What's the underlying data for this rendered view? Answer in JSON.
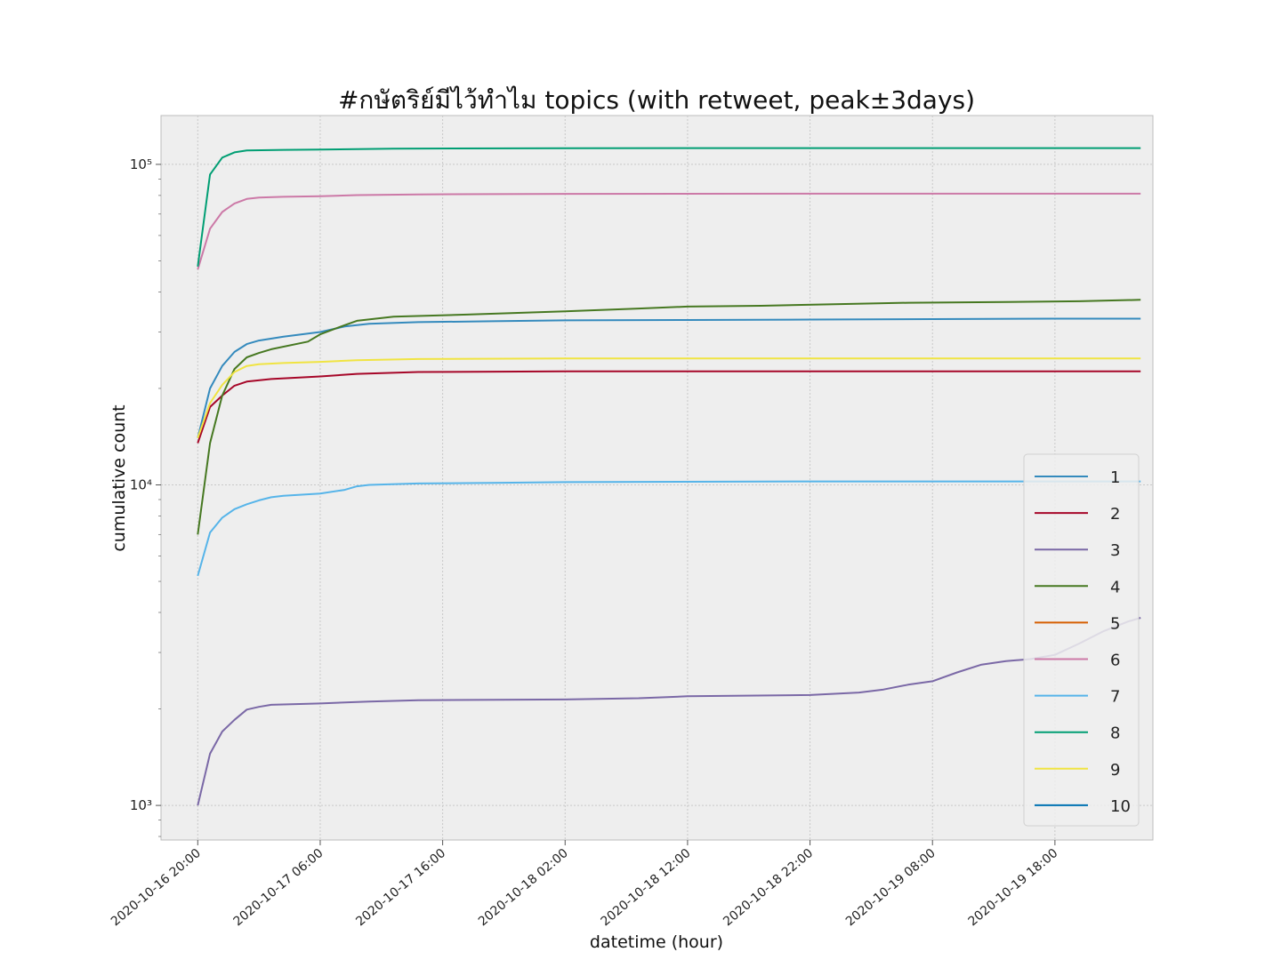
{
  "chart_data": {
    "type": "line",
    "title": "#กษัตริย์มีไว้ทำไม topics (with retweet, peak±3days)",
    "xlabel": "datetime (hour)",
    "ylabel": "cumulative count",
    "yscale": "log",
    "ylim": [
      780,
      142000
    ],
    "xlim": [
      "2020-10-16 17:00",
      "2020-10-20 02:00"
    ],
    "grid": true,
    "legend_position": "lower-right",
    "x_ticks": [
      "2020-10-16 20:00",
      "2020-10-17 06:00",
      "2020-10-17 16:00",
      "2020-10-18 02:00",
      "2020-10-18 12:00",
      "2020-10-18 22:00",
      "2020-10-19 08:00",
      "2020-10-19 18:00"
    ],
    "y_ticks": [
      {
        "value": 1000,
        "label": "10³"
      },
      {
        "value": 10000,
        "label": "10⁴"
      },
      {
        "value": 100000,
        "label": "10⁵"
      }
    ],
    "series": [
      {
        "name": "1",
        "color": "#348abd",
        "points": [
          [
            "2020-10-16 20:00",
            14000
          ],
          [
            "2020-10-16 21:00",
            20000
          ],
          [
            "2020-10-16 22:00",
            23500
          ],
          [
            "2020-10-16 23:00",
            26000
          ],
          [
            "2020-10-17 00:00",
            27500
          ],
          [
            "2020-10-17 01:00",
            28200
          ],
          [
            "2020-10-17 03:00",
            29000
          ],
          [
            "2020-10-17 06:00",
            30000
          ],
          [
            "2020-10-17 08:00",
            31200
          ],
          [
            "2020-10-17 10:00",
            31800
          ],
          [
            "2020-10-17 14:00",
            32200
          ],
          [
            "2020-10-17 20:00",
            32400
          ],
          [
            "2020-10-18 02:00",
            32600
          ],
          [
            "2020-10-18 12:00",
            32700
          ],
          [
            "2020-10-18 22:00",
            32800
          ],
          [
            "2020-10-19 08:00",
            32900
          ],
          [
            "2020-10-19 18:00",
            33000
          ],
          [
            "2020-10-20 01:00",
            33000
          ]
        ]
      },
      {
        "name": "2",
        "color": "#a60628",
        "points": [
          [
            "2020-10-16 20:00",
            13500
          ],
          [
            "2020-10-16 21:00",
            17500
          ],
          [
            "2020-10-16 22:00",
            19000
          ],
          [
            "2020-10-16 23:00",
            20400
          ],
          [
            "2020-10-17 00:00",
            21000
          ],
          [
            "2020-10-17 02:00",
            21400
          ],
          [
            "2020-10-17 06:00",
            21800
          ],
          [
            "2020-10-17 09:00",
            22200
          ],
          [
            "2020-10-17 14:00",
            22500
          ],
          [
            "2020-10-18 02:00",
            22600
          ],
          [
            "2020-10-18 22:00",
            22600
          ],
          [
            "2020-10-20 01:00",
            22600
          ]
        ]
      },
      {
        "name": "3",
        "color": "#7a68a6",
        "points": [
          [
            "2020-10-16 20:00",
            1000
          ],
          [
            "2020-10-16 21:00",
            1450
          ],
          [
            "2020-10-16 22:00",
            1700
          ],
          [
            "2020-10-16 23:00",
            1850
          ],
          [
            "2020-10-17 00:00",
            1990
          ],
          [
            "2020-10-17 01:00",
            2030
          ],
          [
            "2020-10-17 02:00",
            2060
          ],
          [
            "2020-10-17 06:00",
            2080
          ],
          [
            "2020-10-17 10:00",
            2110
          ],
          [
            "2020-10-17 14:00",
            2130
          ],
          [
            "2020-10-18 02:00",
            2140
          ],
          [
            "2020-10-18 08:00",
            2160
          ],
          [
            "2020-10-18 12:00",
            2190
          ],
          [
            "2020-10-18 22:00",
            2210
          ],
          [
            "2020-10-19 02:00",
            2250
          ],
          [
            "2020-10-19 04:00",
            2300
          ],
          [
            "2020-10-19 06:00",
            2380
          ],
          [
            "2020-10-19 08:00",
            2440
          ],
          [
            "2020-10-19 10:00",
            2600
          ],
          [
            "2020-10-19 12:00",
            2750
          ],
          [
            "2020-10-19 14:00",
            2820
          ],
          [
            "2020-10-19 16:00",
            2860
          ],
          [
            "2020-10-19 18:00",
            2950
          ],
          [
            "2020-10-19 20:00",
            3200
          ],
          [
            "2020-10-19 22:00",
            3500
          ],
          [
            "2020-10-20 00:00",
            3750
          ],
          [
            "2020-10-20 01:00",
            3850
          ]
        ]
      },
      {
        "name": "4",
        "color": "#467821",
        "points": [
          [
            "2020-10-16 20:00",
            7000
          ],
          [
            "2020-10-16 21:00",
            13500
          ],
          [
            "2020-10-16 22:00",
            19000
          ],
          [
            "2020-10-16 23:00",
            23000
          ],
          [
            "2020-10-17 00:00",
            25000
          ],
          [
            "2020-10-17 01:00",
            25800
          ],
          [
            "2020-10-17 02:00",
            26500
          ],
          [
            "2020-10-17 05:00",
            28000
          ],
          [
            "2020-10-17 06:00",
            29500
          ],
          [
            "2020-10-17 08:00",
            31500
          ],
          [
            "2020-10-17 09:00",
            32500
          ],
          [
            "2020-10-17 12:00",
            33500
          ],
          [
            "2020-10-17 18:00",
            34000
          ],
          [
            "2020-10-18 02:00",
            34800
          ],
          [
            "2020-10-18 08:00",
            35500
          ],
          [
            "2020-10-18 12:00",
            36000
          ],
          [
            "2020-10-18 18:00",
            36200
          ],
          [
            "2020-10-19 00:00",
            36600
          ],
          [
            "2020-10-19 06:00",
            37000
          ],
          [
            "2020-10-19 14:00",
            37200
          ],
          [
            "2020-10-19 20:00",
            37400
          ],
          [
            "2020-10-20 01:00",
            37800
          ]
        ]
      },
      {
        "name": "5",
        "color": "#d55e00",
        "points": []
      },
      {
        "name": "6",
        "color": "#cc79a7",
        "points": [
          [
            "2020-10-16 20:00",
            47000
          ],
          [
            "2020-10-16 21:00",
            63000
          ],
          [
            "2020-10-16 22:00",
            71000
          ],
          [
            "2020-10-16 23:00",
            75500
          ],
          [
            "2020-10-17 00:00",
            78000
          ],
          [
            "2020-10-17 01:00",
            78800
          ],
          [
            "2020-10-17 03:00",
            79200
          ],
          [
            "2020-10-17 06:00",
            79500
          ],
          [
            "2020-10-17 09:00",
            80200
          ],
          [
            "2020-10-17 14:00",
            80600
          ],
          [
            "2020-10-18 02:00",
            80900
          ],
          [
            "2020-10-18 22:00",
            81000
          ],
          [
            "2020-10-20 01:00",
            81000
          ]
        ]
      },
      {
        "name": "7",
        "color": "#56b4e9",
        "points": [
          [
            "2020-10-16 20:00",
            5200
          ],
          [
            "2020-10-16 21:00",
            7100
          ],
          [
            "2020-10-16 22:00",
            7900
          ],
          [
            "2020-10-16 23:00",
            8400
          ],
          [
            "2020-10-17 00:00",
            8700
          ],
          [
            "2020-10-17 01:00",
            8950
          ],
          [
            "2020-10-17 02:00",
            9150
          ],
          [
            "2020-10-17 03:00",
            9250
          ],
          [
            "2020-10-17 06:00",
            9400
          ],
          [
            "2020-10-17 08:00",
            9650
          ],
          [
            "2020-10-17 09:00",
            9900
          ],
          [
            "2020-10-17 10:00",
            10000
          ],
          [
            "2020-10-17 14:00",
            10100
          ],
          [
            "2020-10-17 20:00",
            10150
          ],
          [
            "2020-10-18 02:00",
            10200
          ],
          [
            "2020-10-18 22:00",
            10250
          ],
          [
            "2020-10-20 01:00",
            10250
          ]
        ]
      },
      {
        "name": "8",
        "color": "#009e73",
        "points": [
          [
            "2020-10-16 20:00",
            48000
          ],
          [
            "2020-10-16 21:00",
            93000
          ],
          [
            "2020-10-16 22:00",
            105000
          ],
          [
            "2020-10-16 23:00",
            109000
          ],
          [
            "2020-10-17 00:00",
            110500
          ],
          [
            "2020-10-17 03:00",
            111000
          ],
          [
            "2020-10-17 06:00",
            111200
          ],
          [
            "2020-10-17 12:00",
            112000
          ],
          [
            "2020-10-18 02:00",
            112300
          ],
          [
            "2020-10-18 22:00",
            112400
          ],
          [
            "2020-10-20 01:00",
            112400
          ]
        ]
      },
      {
        "name": "9",
        "color": "#f0e442",
        "points": [
          [
            "2020-10-16 20:00",
            14000
          ],
          [
            "2020-10-16 21:00",
            18000
          ],
          [
            "2020-10-16 22:00",
            20500
          ],
          [
            "2020-10-16 23:00",
            22500
          ],
          [
            "2020-10-17 00:00",
            23500
          ],
          [
            "2020-10-17 01:00",
            23800
          ],
          [
            "2020-10-17 03:00",
            24000
          ],
          [
            "2020-10-17 06:00",
            24200
          ],
          [
            "2020-10-17 09:00",
            24500
          ],
          [
            "2020-10-17 14:00",
            24700
          ],
          [
            "2020-10-18 02:00",
            24800
          ],
          [
            "2020-10-18 22:00",
            24800
          ],
          [
            "2020-10-20 01:00",
            24800
          ]
        ]
      },
      {
        "name": "10",
        "color": "#0072b2",
        "points": []
      }
    ]
  }
}
